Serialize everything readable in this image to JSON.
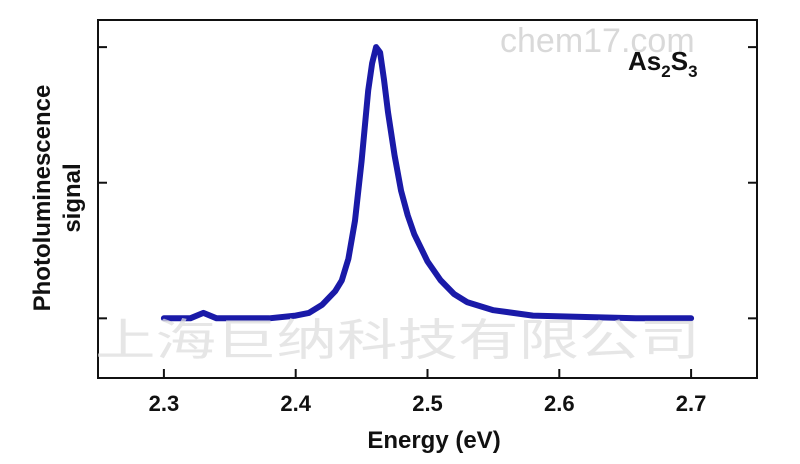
{
  "chart_data": {
    "type": "line",
    "title": "",
    "xlabel": "Energy (eV)",
    "ylabel_lines": [
      "Photoluminescence",
      "signal"
    ],
    "xlim": [
      2.25,
      2.75
    ],
    "ylim": [
      -0.22,
      1.1
    ],
    "x_ticks": [
      "2.3",
      "2.4",
      "2.5",
      "2.6",
      "2.7"
    ],
    "y_ticks_labeled": false,
    "grid": false,
    "line_color": "#1a1aa8",
    "annotation": {
      "base1": "As",
      "sub1": "2",
      "base2": "S",
      "sub2": "3"
    },
    "series": [
      {
        "x": [
          2.3,
          2.32,
          2.33,
          2.34,
          2.36,
          2.38,
          2.4,
          2.41,
          2.42,
          2.43,
          2.435,
          2.44,
          2.445,
          2.45,
          2.455,
          2.458,
          2.461,
          2.464,
          2.467,
          2.47,
          2.475,
          2.48,
          2.485,
          2.49,
          2.5,
          2.51,
          2.52,
          2.53,
          2.55,
          2.58,
          2.62,
          2.66,
          2.7
        ],
        "y": [
          0.0,
          0.0,
          0.02,
          0.0,
          0.0,
          0.0,
          0.01,
          0.02,
          0.05,
          0.1,
          0.14,
          0.22,
          0.36,
          0.58,
          0.84,
          0.94,
          1.0,
          0.98,
          0.88,
          0.76,
          0.6,
          0.47,
          0.38,
          0.31,
          0.21,
          0.14,
          0.09,
          0.06,
          0.03,
          0.01,
          0.005,
          0.0,
          0.0
        ]
      }
    ]
  },
  "watermark": {
    "latin": "chem17.com",
    "chinese": "上海巨纳科技有限公司"
  }
}
